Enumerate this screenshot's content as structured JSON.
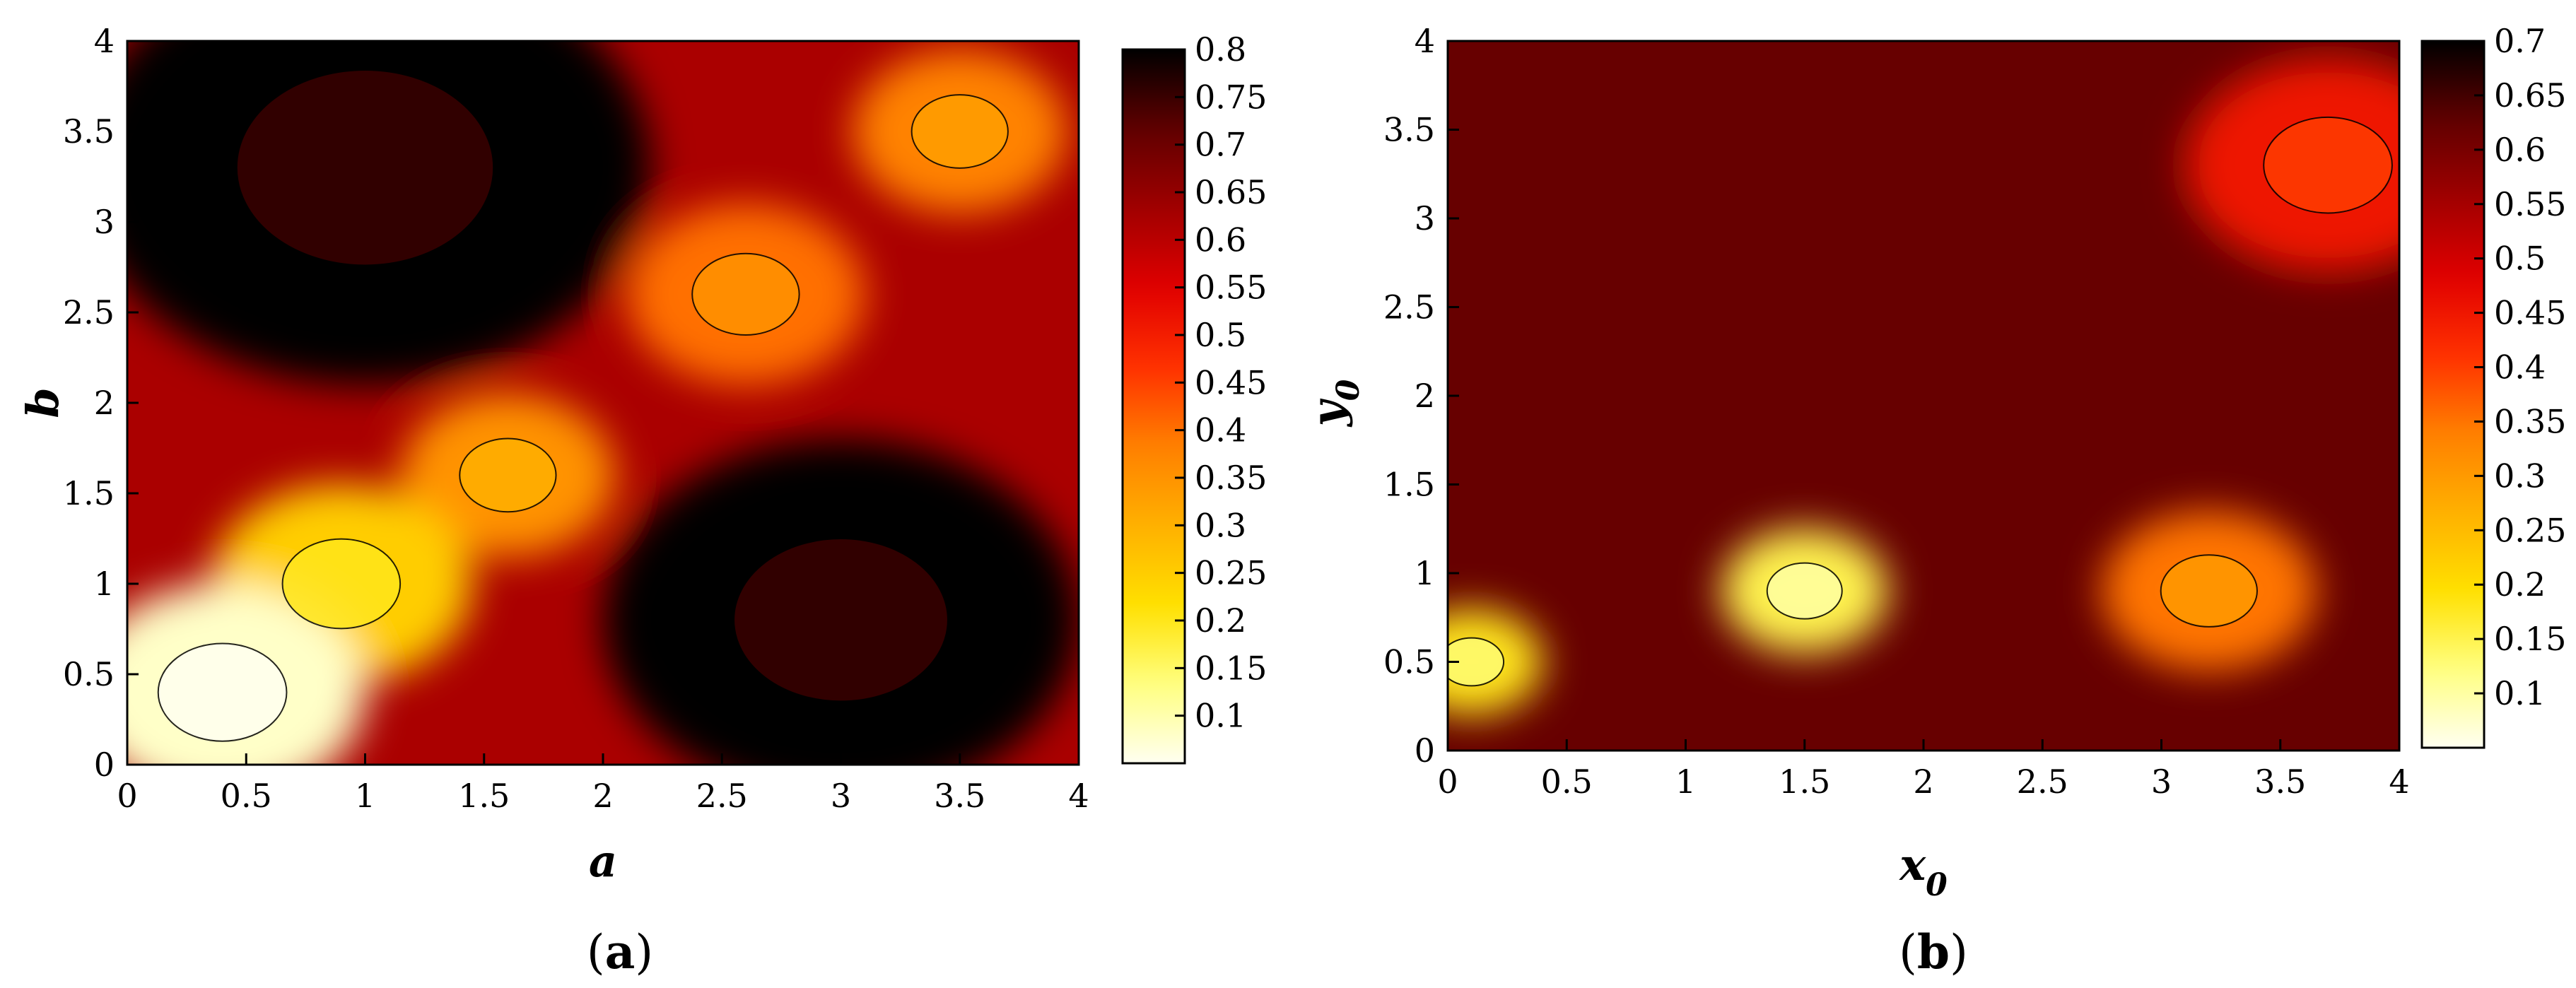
{
  "chart_data": [
    {
      "type": "heatmap",
      "panel_label": "a",
      "title": "",
      "xlabel": "a",
      "ylabel": "b",
      "xlim": [
        0,
        4
      ],
      "ylim": [
        0,
        4
      ],
      "xticks": [
        "0",
        "0.5",
        "1",
        "1.5",
        "2",
        "2.5",
        "3",
        "3.5",
        "4"
      ],
      "yticks": [
        "0",
        "0.5",
        "1",
        "1.5",
        "2",
        "2.5",
        "3",
        "3.5",
        "4"
      ],
      "colorbar": {
        "min": 0.05,
        "max": 0.8,
        "ticks": [
          "0.1",
          "0.15",
          "0.2",
          "0.25",
          "0.3",
          "0.35",
          "0.4",
          "0.45",
          "0.5",
          "0.55",
          "0.6",
          "0.65",
          "0.7",
          "0.75",
          "0.8"
        ],
        "tick_values": [
          0.1,
          0.15,
          0.2,
          0.25,
          0.3,
          0.35,
          0.4,
          0.45,
          0.5,
          0.55,
          0.6,
          0.65,
          0.7,
          0.75,
          0.8
        ]
      },
      "colormap": [
        "#fffff0",
        "#ffff80",
        "#ffe000",
        "#ffb000",
        "#ff8000",
        "#ff3000",
        "#e00000",
        "#a00000",
        "#600000",
        "#000000"
      ],
      "regions": [
        {
          "x": 0.4,
          "y": 0.4,
          "value": 0.08,
          "radius": 0.6
        },
        {
          "x": 0.9,
          "y": 1.0,
          "value": 0.25,
          "radius": 0.55
        },
        {
          "x": 1.6,
          "y": 1.6,
          "value": 0.35,
          "radius": 0.45
        },
        {
          "x": 2.6,
          "y": 2.6,
          "value": 0.4,
          "radius": 0.5
        },
        {
          "x": 3.5,
          "y": 3.5,
          "value": 0.38,
          "radius": 0.45
        },
        {
          "x": 1.0,
          "y": 3.3,
          "value": 0.8,
          "radius": 1.2
        },
        {
          "x": 3.0,
          "y": 0.8,
          "value": 0.8,
          "radius": 1.0
        }
      ]
    },
    {
      "type": "heatmap",
      "panel_label": "b",
      "title": "",
      "xlabel": "x_0",
      "xlabel_main": "x",
      "xlabel_sub": "0",
      "ylabel": "y_0",
      "ylabel_main": "y",
      "ylabel_sub": "0",
      "xlim": [
        0,
        4
      ],
      "ylim": [
        0,
        4
      ],
      "xticks": [
        "0",
        "0.5",
        "1",
        "1.5",
        "2",
        "2.5",
        "3",
        "3.5",
        "4"
      ],
      "yticks": [
        "0",
        "0.5",
        "1",
        "1.5",
        "2",
        "2.5",
        "3",
        "3.5",
        "4"
      ],
      "colorbar": {
        "min": 0.05,
        "max": 0.7,
        "ticks": [
          "0.1",
          "0.15",
          "0.2",
          "0.25",
          "0.3",
          "0.35",
          "0.4",
          "0.45",
          "0.5",
          "0.55",
          "0.6",
          "0.65",
          "0.7"
        ],
        "tick_values": [
          0.1,
          0.15,
          0.2,
          0.25,
          0.3,
          0.35,
          0.4,
          0.45,
          0.5,
          0.55,
          0.6,
          0.65,
          0.7
        ]
      },
      "colormap": [
        "#fffff0",
        "#ffff80",
        "#ffe000",
        "#ffb000",
        "#ff8000",
        "#ff3000",
        "#e00000",
        "#a00000",
        "#600000",
        "#000000"
      ],
      "regions": [
        {
          "x": 3.2,
          "y": 0.9,
          "value": 0.35,
          "radius": 0.45
        },
        {
          "x": 1.5,
          "y": 0.9,
          "value": 0.15,
          "radius": 0.35
        },
        {
          "x": 0.1,
          "y": 0.5,
          "value": 0.18,
          "radius": 0.3
        },
        {
          "x": 3.7,
          "y": 3.3,
          "value": 0.45,
          "radius": 0.6
        }
      ]
    }
  ]
}
